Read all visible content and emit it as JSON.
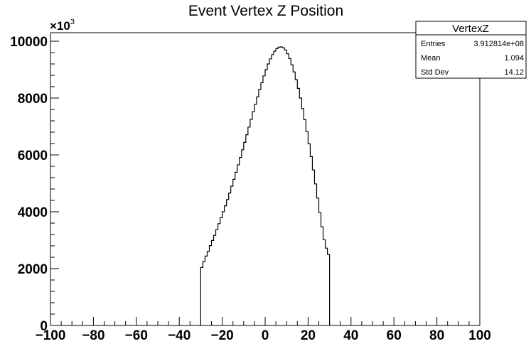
{
  "chart_data": {
    "type": "histogram",
    "title": "Event Vertex Z Position",
    "xlabel": "",
    "ylabel": "",
    "y_multiplier_label": "×10",
    "y_multiplier_exponent": "3",
    "xlim": [
      -100,
      100
    ],
    "ylim": [
      0,
      10300
    ],
    "x_major_ticks": [
      -100,
      -80,
      -60,
      -40,
      -20,
      0,
      20,
      40,
      60,
      80,
      100
    ],
    "y_major_ticks": [
      0,
      2000,
      4000,
      6000,
      8000,
      10000
    ],
    "tick_labels_x": [
      "−100",
      "−80",
      "−60",
      "−40",
      "−20",
      "0",
      "20",
      "40",
      "60",
      "80",
      "100"
    ],
    "tick_labels_y": [
      "0",
      "2000",
      "4000",
      "6000",
      "8000",
      "10000"
    ],
    "bin_width": 1,
    "bin_edges_start": -30,
    "bin_edges_end": 30,
    "values": [
      2040,
      2250,
      2440,
      2610,
      2810,
      2990,
      3170,
      3370,
      3580,
      3790,
      4000,
      4210,
      4430,
      4660,
      4900,
      5140,
      5390,
      5650,
      5910,
      6180,
      6440,
      6710,
      6980,
      7250,
      7520,
      7780,
      8040,
      8300,
      8540,
      8780,
      9000,
      9200,
      9380,
      9530,
      9650,
      9740,
      9790,
      9800,
      9770,
      9690,
      9560,
      9390,
      9170,
      8920,
      8650,
      8340,
      8000,
      7630,
      7240,
      6820,
      6390,
      5940,
      5470,
      4980,
      4480,
      3970,
      3470,
      3020,
      2720,
      2500
    ],
    "grid": false,
    "stats_box": {
      "name": "VertexZ",
      "rows": [
        {
          "label": "Entries",
          "value": "3.912814e+08"
        },
        {
          "label": "Mean",
          "value": "1.094"
        },
        {
          "label": "Std Dev",
          "value": "14.12"
        }
      ]
    },
    "colors": {
      "line": "#000000",
      "background": "#ffffff"
    }
  }
}
